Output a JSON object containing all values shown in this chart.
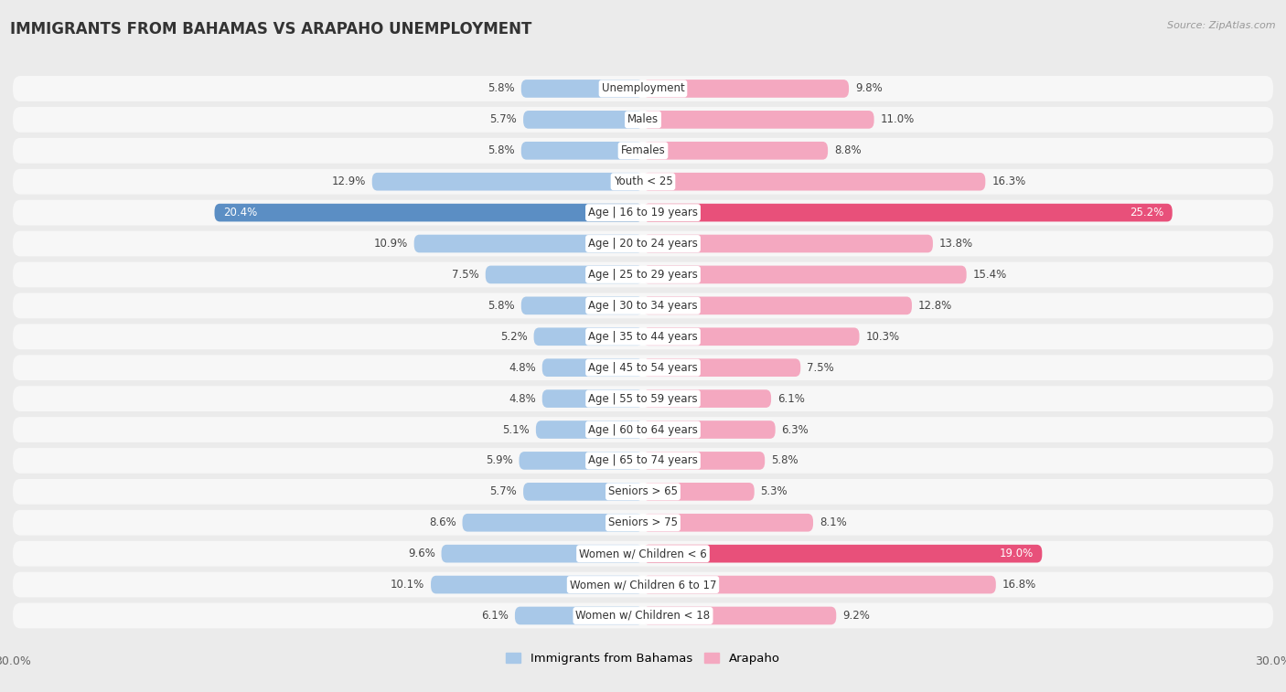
{
  "title": "IMMIGRANTS FROM BAHAMAS VS ARAPAHO UNEMPLOYMENT",
  "source": "Source: ZipAtlas.com",
  "categories": [
    "Unemployment",
    "Males",
    "Females",
    "Youth < 25",
    "Age | 16 to 19 years",
    "Age | 20 to 24 years",
    "Age | 25 to 29 years",
    "Age | 30 to 34 years",
    "Age | 35 to 44 years",
    "Age | 45 to 54 years",
    "Age | 55 to 59 years",
    "Age | 60 to 64 years",
    "Age | 65 to 74 years",
    "Seniors > 65",
    "Seniors > 75",
    "Women w/ Children < 6",
    "Women w/ Children 6 to 17",
    "Women w/ Children < 18"
  ],
  "left_values": [
    5.8,
    5.7,
    5.8,
    12.9,
    20.4,
    10.9,
    7.5,
    5.8,
    5.2,
    4.8,
    4.8,
    5.1,
    5.9,
    5.7,
    8.6,
    9.6,
    10.1,
    6.1
  ],
  "right_values": [
    9.8,
    11.0,
    8.8,
    16.3,
    25.2,
    13.8,
    15.4,
    12.8,
    10.3,
    7.5,
    6.1,
    6.3,
    5.8,
    5.3,
    8.1,
    19.0,
    16.8,
    9.2
  ],
  "left_color_normal": "#a8c8e8",
  "right_color_normal": "#f4a8c0",
  "left_color_highlight": "#5b8ec4",
  "right_color_highlight": "#e8507a",
  "highlight_rows": [
    4
  ],
  "highlight_right_rows": [
    15
  ],
  "xlim": 30.0,
  "bg_color": "#ebebeb",
  "row_bg_color": "#f7f7f7",
  "sep_color": "#dedede",
  "label_fontsize": 8.5,
  "value_fontsize": 8.5,
  "title_fontsize": 12,
  "legend_labels": [
    "Immigrants from Bahamas",
    "Arapaho"
  ],
  "legend_colors": [
    "#a8c8e8",
    "#f4a8c0"
  ]
}
